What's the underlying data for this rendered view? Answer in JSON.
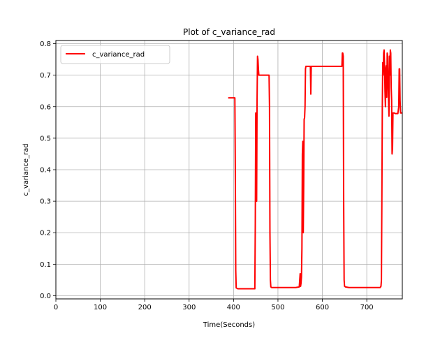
{
  "chart_data": {
    "type": "line",
    "title": "Plot of c_variance_rad",
    "xlabel": "Time(Seconds)",
    "ylabel": "c_variance_rad",
    "xlim": [
      0,
      780
    ],
    "ylim": [
      -0.01,
      0.81
    ],
    "x_ticks": [
      0,
      100,
      200,
      300,
      400,
      500,
      600,
      700
    ],
    "y_ticks": [
      0.0,
      0.1,
      0.2,
      0.3,
      0.4,
      0.5,
      0.6,
      0.7,
      0.8
    ],
    "x_tick_labels": [
      "0",
      "100",
      "200",
      "300",
      "400",
      "500",
      "600",
      "700"
    ],
    "y_tick_labels": [
      "0.0",
      "0.1",
      "0.2",
      "0.3",
      "0.4",
      "0.5",
      "0.6",
      "0.7",
      "0.8"
    ],
    "grid": true,
    "legend_position": "top-left",
    "series": [
      {
        "name": "c_variance_rad",
        "color": "#ff0000",
        "x": [
          388,
          403,
          404,
          405,
          406,
          410,
          430,
          448,
          449,
          450,
          451,
          452,
          453,
          454,
          455,
          456,
          457,
          458,
          460,
          470,
          478,
          480,
          481,
          482,
          483,
          484,
          486,
          500,
          520,
          540,
          548,
          550,
          551,
          552,
          553,
          554,
          555,
          556,
          557,
          558,
          559,
          560,
          561,
          562,
          563,
          564,
          566,
          570,
          573,
          574,
          575,
          576,
          580,
          600,
          620,
          640,
          644,
          645,
          646,
          647,
          648,
          649,
          650,
          652,
          660,
          680,
          700,
          720,
          730,
          732,
          733,
          734,
          735,
          736,
          737,
          738,
          739,
          740,
          741,
          742,
          743,
          744,
          745,
          746,
          747,
          748,
          749,
          750,
          751,
          752,
          753,
          754,
          755,
          756,
          757,
          758,
          759,
          760,
          762,
          764,
          766,
          768,
          770,
          772,
          773,
          774,
          775,
          776,
          777,
          778,
          780
        ],
        "y": [
          0.628,
          0.628,
          0.4,
          0.08,
          0.025,
          0.022,
          0.022,
          0.022,
          0.23,
          0.58,
          0.55,
          0.3,
          0.62,
          0.76,
          0.75,
          0.72,
          0.7,
          0.7,
          0.7,
          0.7,
          0.7,
          0.7,
          0.6,
          0.2,
          0.05,
          0.028,
          0.026,
          0.026,
          0.026,
          0.026,
          0.028,
          0.07,
          0.03,
          0.04,
          0.06,
          0.15,
          0.45,
          0.49,
          0.2,
          0.35,
          0.56,
          0.565,
          0.6,
          0.72,
          0.728,
          0.728,
          0.728,
          0.728,
          0.728,
          0.64,
          0.728,
          0.728,
          0.728,
          0.728,
          0.728,
          0.728,
          0.728,
          0.77,
          0.77,
          0.76,
          0.3,
          0.05,
          0.03,
          0.028,
          0.026,
          0.026,
          0.026,
          0.026,
          0.026,
          0.03,
          0.05,
          0.3,
          0.6,
          0.74,
          0.7,
          0.77,
          0.78,
          0.74,
          0.65,
          0.6,
          0.72,
          0.73,
          0.63,
          0.77,
          0.76,
          0.68,
          0.62,
          0.57,
          0.76,
          0.7,
          0.78,
          0.77,
          0.66,
          0.62,
          0.45,
          0.47,
          0.58,
          0.58,
          0.58,
          0.578,
          0.578,
          0.578,
          0.578,
          0.6,
          0.72,
          0.72,
          0.62,
          0.58,
          0.58,
          0.58,
          0.58
        ]
      }
    ]
  }
}
